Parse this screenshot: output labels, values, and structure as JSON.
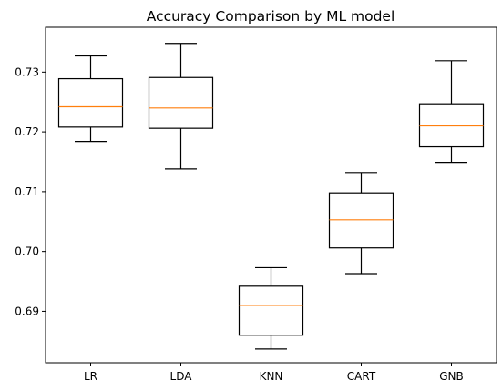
{
  "chart_data": {
    "type": "boxplot",
    "title": "Accuracy Comparison by ML model",
    "xlabel": "",
    "ylabel": "",
    "categories": [
      "LR",
      "LDA",
      "KNN",
      "CART",
      "GNB"
    ],
    "boxes": [
      {
        "label": "LR",
        "whisker_low": 0.7184,
        "q1": 0.7208,
        "median": 0.7242,
        "q3": 0.7289,
        "whisker_high": 0.7327
      },
      {
        "label": "LDA",
        "whisker_low": 0.7138,
        "q1": 0.7206,
        "median": 0.724,
        "q3": 0.7291,
        "whisker_high": 0.7348
      },
      {
        "label": "KNN",
        "whisker_low": 0.6837,
        "q1": 0.686,
        "median": 0.691,
        "q3": 0.6942,
        "whisker_high": 0.6973
      },
      {
        "label": "CART",
        "whisker_low": 0.6963,
        "q1": 0.7006,
        "median": 0.7053,
        "q3": 0.7098,
        "whisker_high": 0.7132
      },
      {
        "label": "GNB",
        "whisker_low": 0.7149,
        "q1": 0.7175,
        "median": 0.721,
        "q3": 0.7247,
        "whisker_high": 0.7319
      }
    ],
    "ylim": [
      0.6814,
      0.7375
    ],
    "yticks": [
      0.69,
      0.7,
      0.71,
      0.72,
      0.73
    ],
    "ytick_labels": [
      "0.69",
      "0.70",
      "0.71",
      "0.72",
      "0.73"
    ],
    "grid": false,
    "median_color": "#ff7f0e",
    "box_color": "#000000"
  }
}
